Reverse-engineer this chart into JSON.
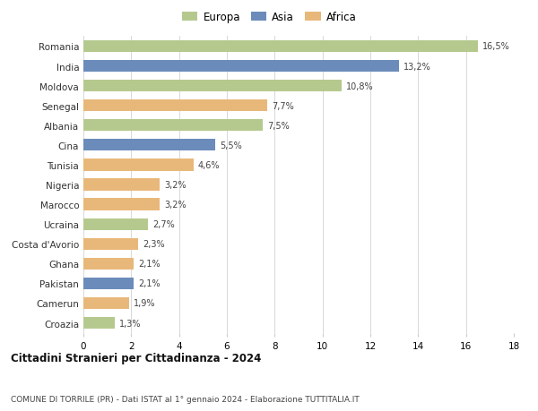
{
  "countries": [
    "Romania",
    "India",
    "Moldova",
    "Senegal",
    "Albania",
    "Cina",
    "Tunisia",
    "Nigeria",
    "Marocco",
    "Ucraina",
    "Costa d'Avorio",
    "Ghana",
    "Pakistan",
    "Camerun",
    "Croazia"
  ],
  "values": [
    16.5,
    13.2,
    10.8,
    7.7,
    7.5,
    5.5,
    4.6,
    3.2,
    3.2,
    2.7,
    2.3,
    2.1,
    2.1,
    1.9,
    1.3
  ],
  "labels": [
    "16,5%",
    "13,2%",
    "10,8%",
    "7,7%",
    "7,5%",
    "5,5%",
    "4,6%",
    "3,2%",
    "3,2%",
    "2,7%",
    "2,3%",
    "2,1%",
    "2,1%",
    "1,9%",
    "1,3%"
  ],
  "continents": [
    "Europa",
    "Asia",
    "Europa",
    "Africa",
    "Europa",
    "Asia",
    "Africa",
    "Africa",
    "Africa",
    "Europa",
    "Africa",
    "Africa",
    "Asia",
    "Africa",
    "Europa"
  ],
  "colors": {
    "Europa": "#b5c98e",
    "Asia": "#6b8cba",
    "Africa": "#e8b87a"
  },
  "xlim": [
    0,
    18
  ],
  "xticks": [
    0,
    2,
    4,
    6,
    8,
    10,
    12,
    14,
    16,
    18
  ],
  "title": "Cittadini Stranieri per Cittadinanza - 2024",
  "subtitle": "COMUNE DI TORRILE (PR) - Dati ISTAT al 1° gennaio 2024 - Elaborazione TUTTITALIA.IT",
  "bg_color": "#ffffff",
  "grid_color": "#d8d8d8",
  "bar_height": 0.6
}
